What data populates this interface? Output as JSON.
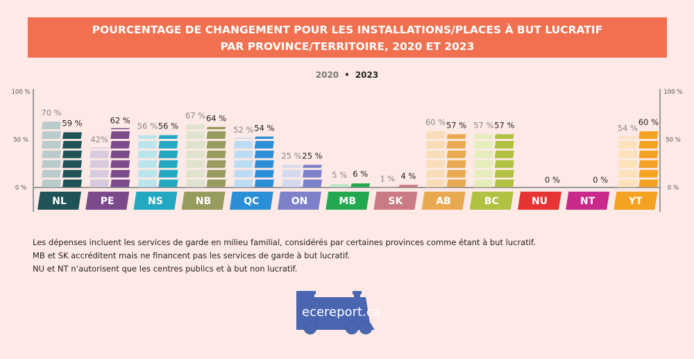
{
  "title_line1": "POURCENTAGE DE CHANGEMENT POUR LES INSTALLATIONS/PLACES À BUT LUCRATIF",
  "title_line2": "PAR PROVINCE/TERRITOIRE, 2020 ET 2023",
  "chart_data": {
    "type": "bar",
    "categories": [
      "NL",
      "PE",
      "NS",
      "NB",
      "QC",
      "ON",
      "MB",
      "SK",
      "AB",
      "BC",
      "NU",
      "NT",
      "YT"
    ],
    "series": [
      {
        "name": "2020",
        "values": [
          70,
          42,
          56,
          67,
          52,
          25,
          5,
          1,
          60,
          57,
          null,
          null,
          54
        ],
        "labels": [
          "70 %",
          "42%",
          "56 %",
          "67 %",
          "52 %",
          "25 %",
          "5 %",
          "1 %",
          "60 %",
          "57 %",
          "",
          "",
          "54 %"
        ]
      },
      {
        "name": "2023",
        "values": [
          59,
          62,
          56,
          64,
          54,
          25,
          6,
          4,
          57,
          57,
          0,
          0,
          60
        ],
        "labels": [
          "59 %",
          "62 %",
          "56 %",
          "64 %",
          "54 %",
          "25 %",
          "6 %",
          "4 %",
          "57 %",
          "57 %",
          "0 %",
          "0 %",
          "60 %"
        ]
      }
    ],
    "yticks": [
      "0 %",
      "50 %",
      "100 %"
    ],
    "ylim": [
      0,
      100
    ],
    "legend_placement": "top-center",
    "colors": {
      "NL": [
        "#b9cbca",
        "#1f5357"
      ],
      "PE": [
        "#d8cadf",
        "#7b4a8b"
      ],
      "NS": [
        "#bbe5ec",
        "#22a9c1"
      ],
      "NB": [
        "#e0e3cd",
        "#979b5d"
      ],
      "QC": [
        "#bcdcf3",
        "#2a8fd7"
      ],
      "ON": [
        "#d6d9ee",
        "#7c81c9"
      ],
      "MB": [
        "#bde6cb",
        "#22a94f"
      ],
      "SK": [
        "#f0cccc",
        "#c97a82"
      ],
      "AB": [
        "#f9ddb9",
        "#e9a950"
      ],
      "BC": [
        "#e5edbb",
        "#b1c141"
      ],
      "NU": [
        "#e63333",
        "#e63333"
      ],
      "NT": [
        "#c9298b",
        "#c9298b"
      ],
      "YT": [
        "#fde1ba",
        "#f5a121"
      ]
    }
  },
  "legend": {
    "y2020": "2020",
    "separator": "•",
    "y2023": "2023"
  },
  "notes": [
    "Les dépenses incluent les services de garde en milieu familial, considérés par certaines provinces comme étant à but lucratif.",
    "MB et SK accréditent mais ne financent pas les services de garde à but lucratif.",
    "NU et NT n’autorisent que les centres publics et à but non lucratif."
  ],
  "logo_text": "ecereport.ca"
}
